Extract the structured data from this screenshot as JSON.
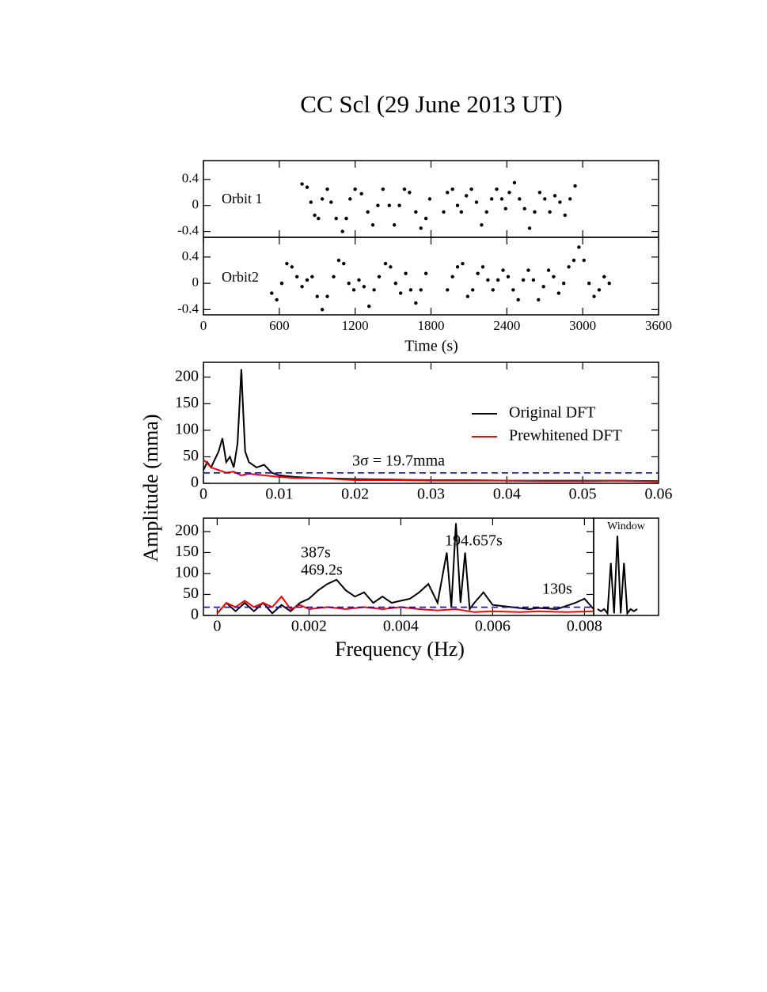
{
  "title": "CC Scl (29 June 2013 UT)",
  "chart_data": [
    {
      "type": "scatter",
      "label": "Orbit 1",
      "xlim": [
        0,
        3600
      ],
      "xticks": [
        0,
        600,
        1200,
        1800,
        2400,
        3000,
        3600
      ],
      "ylim": [
        -0.49,
        0.69
      ],
      "yticks": [
        0.4,
        0,
        -0.4
      ],
      "color": "#000000",
      "x": [
        780,
        820,
        850,
        880,
        910,
        940,
        980,
        1010,
        1050,
        1100,
        1130,
        1160,
        1200,
        1250,
        1300,
        1340,
        1380,
        1420,
        1470,
        1510,
        1550,
        1590,
        1630,
        1680,
        1720,
        1760,
        1790,
        1900,
        1930,
        1970,
        2010,
        2040,
        2080,
        2120,
        2160,
        2200,
        2240,
        2280,
        2320,
        2360,
        2390,
        2420,
        2460,
        2500,
        2540,
        2580,
        2620,
        2660,
        2700,
        2740,
        2780,
        2820,
        2860,
        2900,
        2940
      ],
      "values": [
        0.33,
        0.28,
        0.05,
        -0.15,
        -0.2,
        0.1,
        0.25,
        0.05,
        -0.2,
        -0.4,
        -0.2,
        0.1,
        0.25,
        0.18,
        -0.1,
        -0.3,
        0.0,
        0.25,
        0.0,
        -0.3,
        0.0,
        0.25,
        0.2,
        -0.1,
        -0.35,
        -0.2,
        0.1,
        -0.1,
        0.2,
        0.25,
        0.0,
        -0.1,
        0.15,
        0.25,
        0.05,
        -0.3,
        -0.1,
        0.1,
        0.25,
        0.1,
        -0.05,
        0.2,
        0.35,
        0.1,
        -0.05,
        -0.35,
        -0.1,
        0.2,
        0.1,
        -0.1,
        0.15,
        0.05,
        -0.15,
        0.1,
        0.3
      ]
    },
    {
      "type": "scatter",
      "label": "Orbit2",
      "xlabel": "Time (s)",
      "xlim": [
        0,
        3600
      ],
      "xticks": [
        0,
        600,
        1200,
        1800,
        2400,
        3000,
        3600
      ],
      "ylim": [
        -0.48,
        0.7
      ],
      "yticks": [
        0.4,
        0,
        -0.4
      ],
      "color": "#000000",
      "x": [
        540,
        580,
        620,
        660,
        700,
        740,
        780,
        820,
        860,
        900,
        940,
        980,
        1030,
        1070,
        1110,
        1150,
        1190,
        1230,
        1270,
        1310,
        1350,
        1390,
        1440,
        1480,
        1520,
        1560,
        1600,
        1640,
        1680,
        1720,
        1760,
        1930,
        1970,
        2010,
        2050,
        2090,
        2130,
        2170,
        2210,
        2250,
        2290,
        2330,
        2370,
        2410,
        2450,
        2490,
        2530,
        2570,
        2610,
        2650,
        2690,
        2730,
        2770,
        2810,
        2850,
        2890,
        2930,
        2970,
        3010,
        3050,
        3090,
        3130,
        3170,
        3210
      ],
      "values": [
        -0.15,
        -0.25,
        0.0,
        0.3,
        0.25,
        0.1,
        -0.05,
        0.05,
        0.1,
        -0.2,
        -0.4,
        -0.2,
        0.1,
        0.35,
        0.3,
        0.0,
        -0.1,
        0.05,
        -0.05,
        -0.35,
        -0.1,
        0.1,
        0.3,
        0.25,
        0.0,
        -0.15,
        0.15,
        -0.1,
        -0.3,
        -0.1,
        0.15,
        -0.1,
        0.1,
        0.25,
        0.3,
        -0.2,
        -0.1,
        0.15,
        0.25,
        0.05,
        -0.1,
        0.05,
        0.2,
        0.1,
        -0.1,
        -0.25,
        0.05,
        0.2,
        0.05,
        -0.25,
        -0.05,
        0.2,
        0.1,
        -0.15,
        0.0,
        0.25,
        0.35,
        0.55,
        0.35,
        0.0,
        -0.2,
        -0.1,
        0.1,
        0.0
      ]
    },
    {
      "type": "line",
      "ylabel": "Amplitude (mma)",
      "xlim": [
        0,
        0.06
      ],
      "xticks": [
        0,
        0.01,
        0.02,
        0.03,
        0.04,
        0.05,
        0.06
      ],
      "ylim": [
        0,
        228
      ],
      "yticks": [
        0,
        50,
        100,
        150,
        200
      ],
      "threshold": {
        "value": 19.7,
        "color": "#0000ff",
        "label": "3σ = 19.7mma"
      },
      "series": [
        {
          "name": "Original DFT",
          "color": "#000000",
          "x": [
            0,
            0.0005,
            0.001,
            0.0015,
            0.002,
            0.0025,
            0.003,
            0.0035,
            0.004,
            0.0045,
            0.005,
            0.0052,
            0.0055,
            0.006,
            0.007,
            0.008,
            0.009,
            0.01,
            0.012,
            0.015,
            0.02,
            0.025,
            0.03,
            0.035,
            0.04,
            0.045,
            0.05,
            0.055,
            0.06
          ],
          "values": [
            25,
            40,
            30,
            45,
            60,
            85,
            40,
            50,
            30,
            75,
            215,
            150,
            60,
            40,
            30,
            35,
            20,
            15,
            12,
            10,
            8,
            7,
            6,
            6,
            5,
            5,
            5,
            5,
            4
          ]
        },
        {
          "name": "Prewhitened DFT",
          "color": "#ff0000",
          "x": [
            0,
            0.001,
            0.002,
            0.003,
            0.004,
            0.005,
            0.006,
            0.008,
            0.01,
            0.012,
            0.015,
            0.02,
            0.025,
            0.03,
            0.035,
            0.04,
            0.045,
            0.05,
            0.055,
            0.06
          ],
          "values": [
            45,
            30,
            25,
            20,
            22,
            15,
            18,
            15,
            12,
            10,
            10,
            6,
            6,
            5,
            5,
            5,
            4,
            4,
            5,
            3
          ]
        }
      ]
    },
    {
      "type": "line",
      "xlabel": "Frequency (Hz)",
      "xlim": [
        -0.0003,
        0.0082
      ],
      "xticks": [
        0,
        0.002,
        0.004,
        0.006,
        0.008
      ],
      "ylim": [
        0,
        232
      ],
      "yticks": [
        0,
        50,
        100,
        150,
        200
      ],
      "threshold": {
        "value": 19.7,
        "color": "#0000ff"
      },
      "annotations": [
        "387s",
        "469.2s",
        "194.657s",
        "130s"
      ],
      "annotation_color": "#228b22",
      "series": [
        {
          "color": "#000000",
          "x": [
            0,
            0.0002,
            0.0004,
            0.0006,
            0.0008,
            0.001,
            0.0012,
            0.0014,
            0.0016,
            0.0018,
            0.002,
            0.0022,
            0.0024,
            0.0026,
            0.0028,
            0.003,
            0.0032,
            0.0034,
            0.0036,
            0.0038,
            0.004,
            0.0042,
            0.0044,
            0.0046,
            0.0048,
            0.005,
            0.0051,
            0.0052,
            0.0053,
            0.0054,
            0.0055,
            0.0056,
            0.0058,
            0.006,
            0.0064,
            0.0068,
            0.007,
            0.0074,
            0.0078,
            0.008,
            0.0082
          ],
          "values": [
            5,
            30,
            10,
            30,
            10,
            30,
            5,
            25,
            10,
            30,
            40,
            60,
            75,
            85,
            60,
            45,
            55,
            30,
            45,
            30,
            35,
            40,
            55,
            75,
            30,
            150,
            20,
            220,
            30,
            150,
            15,
            30,
            55,
            25,
            20,
            15,
            18,
            15,
            30,
            40,
            15
          ]
        },
        {
          "color": "#ff0000",
          "x": [
            0,
            0.0002,
            0.0004,
            0.0006,
            0.0008,
            0.001,
            0.0012,
            0.0014,
            0.0016,
            0.0018,
            0.002,
            0.0024,
            0.0028,
            0.0032,
            0.0036,
            0.004,
            0.0044,
            0.0048,
            0.0052,
            0.0056,
            0.006,
            0.0066,
            0.007,
            0.0076,
            0.0082
          ],
          "values": [
            5,
            30,
            20,
            35,
            20,
            30,
            20,
            45,
            15,
            25,
            15,
            20,
            15,
            20,
            15,
            20,
            15,
            12,
            15,
            8,
            10,
            8,
            10,
            8,
            10
          ]
        }
      ],
      "window": {
        "label": "Window",
        "color": "#000000",
        "values": [
          15,
          10,
          15,
          5,
          125,
          5,
          190,
          5,
          125,
          5,
          15,
          10,
          15
        ]
      }
    }
  ]
}
